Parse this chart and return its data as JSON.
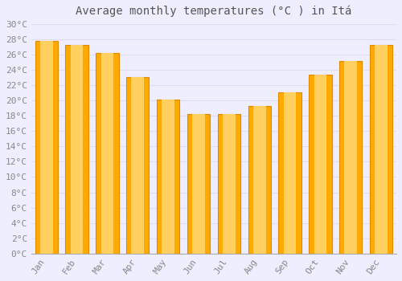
{
  "title": "Average monthly temperatures (°C ) in Itá",
  "months": [
    "Jan",
    "Feb",
    "Mar",
    "Apr",
    "May",
    "Jun",
    "Jul",
    "Aug",
    "Sep",
    "Oct",
    "Nov",
    "Dec"
  ],
  "values": [
    27.8,
    27.2,
    26.2,
    23.0,
    20.1,
    18.2,
    18.2,
    19.3,
    21.0,
    23.4,
    25.1,
    27.2
  ],
  "bar_color_main": "#FFAA00",
  "bar_color_light": "#FFD060",
  "bar_edge_color": "#E08800",
  "ylim": [
    0,
    30
  ],
  "background_color": "#eeeeff",
  "plot_bg_color": "#eeeeff",
  "grid_color": "#ddddee",
  "title_fontsize": 10,
  "tick_fontsize": 8,
  "tick_color": "#888888",
  "title_color": "#555555"
}
